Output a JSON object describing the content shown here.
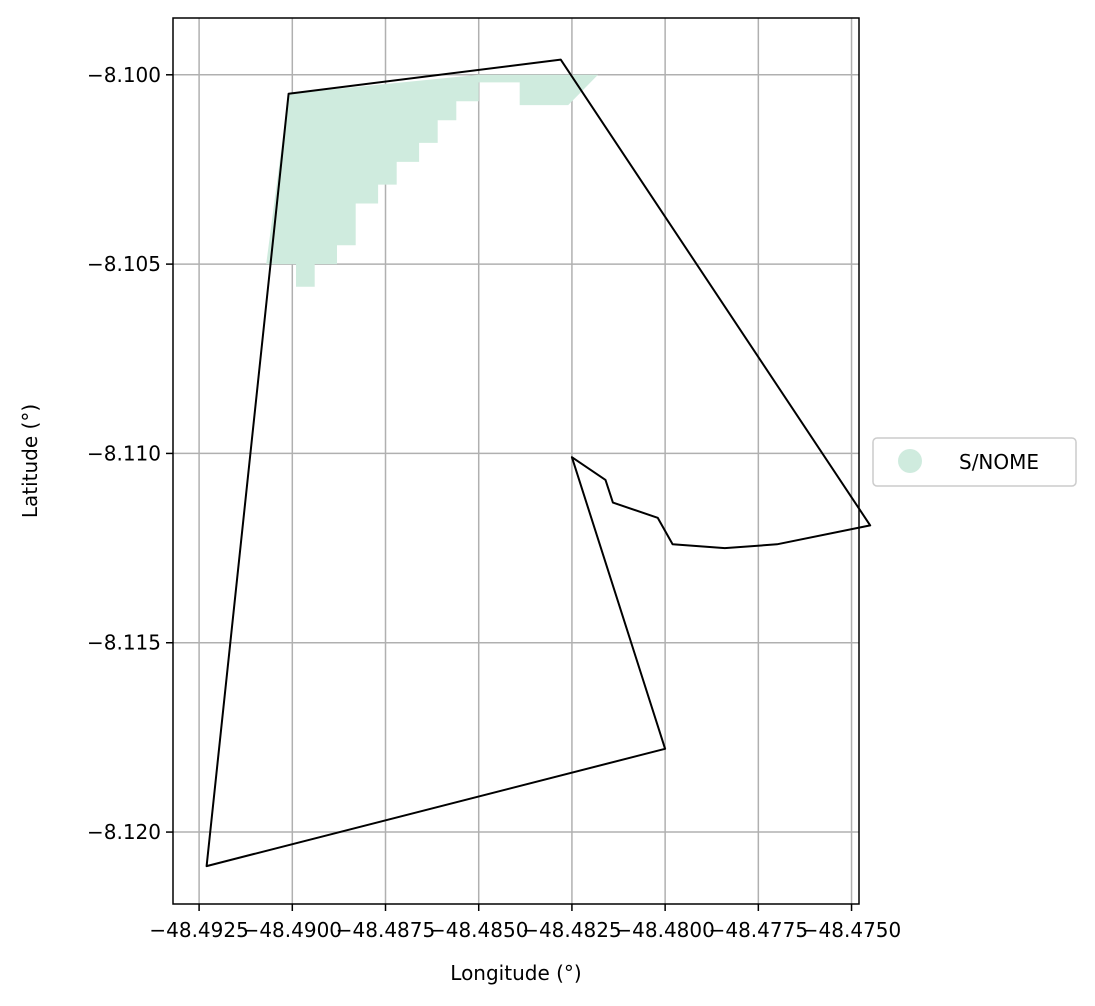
{
  "chart_data": {
    "type": "map",
    "xlabel": "Longitude (°)",
    "ylabel": "Latitude (°)",
    "xlim": [
      -48.4932,
      -48.4748
    ],
    "ylim": [
      -8.1219,
      -8.0985
    ],
    "grid": true,
    "x_ticks": [
      {
        "value": -48.4925,
        "label": "−48.4925"
      },
      {
        "value": -48.49,
        "label": "−48.4900"
      },
      {
        "value": -48.4875,
        "label": "−48.4875"
      },
      {
        "value": -48.485,
        "label": "−48.4850"
      },
      {
        "value": -48.4825,
        "label": "−48.4825"
      },
      {
        "value": -48.48,
        "label": "−48.4800"
      },
      {
        "value": -48.4775,
        "label": "−48.4775"
      },
      {
        "value": -48.475,
        "label": "−48.4750"
      }
    ],
    "y_ticks": [
      {
        "value": -8.1,
        "label": "−8.100"
      },
      {
        "value": -8.105,
        "label": "−8.105"
      },
      {
        "value": -8.11,
        "label": "−8.110"
      },
      {
        "value": -8.115,
        "label": "−8.115"
      },
      {
        "value": -8.12,
        "label": "−8.120"
      }
    ],
    "boundary_polygon": [
      [
        -48.4923,
        -8.1209
      ],
      [
        -48.4901,
        -8.1005
      ],
      [
        -48.4828,
        -8.0996
      ],
      [
        -48.4745,
        -8.1119
      ],
      [
        -48.477,
        -8.1124
      ],
      [
        -48.4784,
        -8.1125
      ],
      [
        -48.4798,
        -8.1124
      ],
      [
        -48.4802,
        -8.1117
      ],
      [
        -48.4814,
        -8.1113
      ],
      [
        -48.4816,
        -8.1107
      ],
      [
        -48.4825,
        -8.1101
      ],
      [
        -48.48,
        -8.1178
      ]
    ],
    "area_polygon": [
      [
        -48.4901,
        -8.1005
      ],
      [
        -48.485,
        -8.1
      ],
      [
        -48.4818,
        -8.1
      ],
      [
        -48.4826,
        -8.1008
      ],
      [
        -48.4839,
        -8.1008
      ],
      [
        -48.4839,
        -8.1002
      ],
      [
        -48.485,
        -8.1002
      ],
      [
        -48.485,
        -8.1007
      ],
      [
        -48.4856,
        -8.1007
      ],
      [
        -48.4856,
        -8.1012
      ],
      [
        -48.4861,
        -8.1012
      ],
      [
        -48.4861,
        -8.1018
      ],
      [
        -48.4866,
        -8.1018
      ],
      [
        -48.4866,
        -8.1023
      ],
      [
        -48.4872,
        -8.1023
      ],
      [
        -48.4872,
        -8.1029
      ],
      [
        -48.4877,
        -8.1029
      ],
      [
        -48.4877,
        -8.1034
      ],
      [
        -48.4883,
        -8.1034
      ],
      [
        -48.4883,
        -8.1045
      ],
      [
        -48.4888,
        -8.1045
      ],
      [
        -48.4888,
        -8.105
      ],
      [
        -48.4894,
        -8.105
      ],
      [
        -48.4894,
        -8.1056
      ],
      [
        -48.4899,
        -8.1056
      ],
      [
        -48.4899,
        -8.105
      ],
      [
        -48.4907,
        -8.105
      ]
    ],
    "legend": {
      "position": "center-right",
      "entries": [
        {
          "label": "S/NOME",
          "color": "#cfebde"
        }
      ]
    },
    "colors": {
      "area_fill": "#cfebde",
      "boundary": "#000000",
      "grid": "#b0b0b0"
    }
  }
}
